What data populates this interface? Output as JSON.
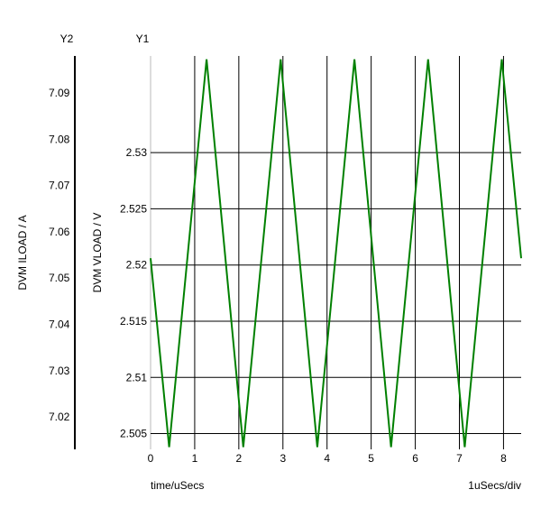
{
  "chart_data": {
    "type": "line",
    "x_axis": {
      "label": "time/uSecs",
      "scale_label": "1uSecs/div",
      "range": [
        0,
        8.4
      ],
      "ticks": [
        0,
        1,
        2,
        3,
        4,
        5,
        6,
        7,
        8
      ]
    },
    "y1_axis": {
      "header": "Y1",
      "label": "DVM VLOAD / V",
      "range": [
        2.5036,
        2.5386
      ],
      "ticks": [
        "2.505",
        "2.51",
        "2.515",
        "2.52",
        "2.525",
        "2.53"
      ],
      "tick_values": [
        2.505,
        2.51,
        2.515,
        2.52,
        2.525,
        2.53
      ]
    },
    "y2_axis": {
      "header": "Y2",
      "label": "DVM ILOAD / A",
      "range": [
        7.013,
        7.098
      ],
      "ticks": [
        "7.02",
        "7.03",
        "7.04",
        "7.05",
        "7.06",
        "7.07",
        "7.08",
        "7.09"
      ],
      "tick_values": [
        7.02,
        7.03,
        7.04,
        7.05,
        7.06,
        7.07,
        7.08,
        7.09
      ]
    },
    "grid": true,
    "series": [
      {
        "axis": "y1",
        "color": "#008000",
        "x": [
          0,
          0.42,
          1.27,
          2.1,
          2.95,
          3.78,
          4.62,
          5.45,
          6.29,
          7.12,
          7.96,
          8.4
        ],
        "y": [
          2.5206,
          2.5038,
          2.5383,
          2.5038,
          2.5383,
          2.5038,
          2.5383,
          2.5038,
          2.5383,
          2.5038,
          2.5383,
          2.5206
        ]
      }
    ]
  }
}
